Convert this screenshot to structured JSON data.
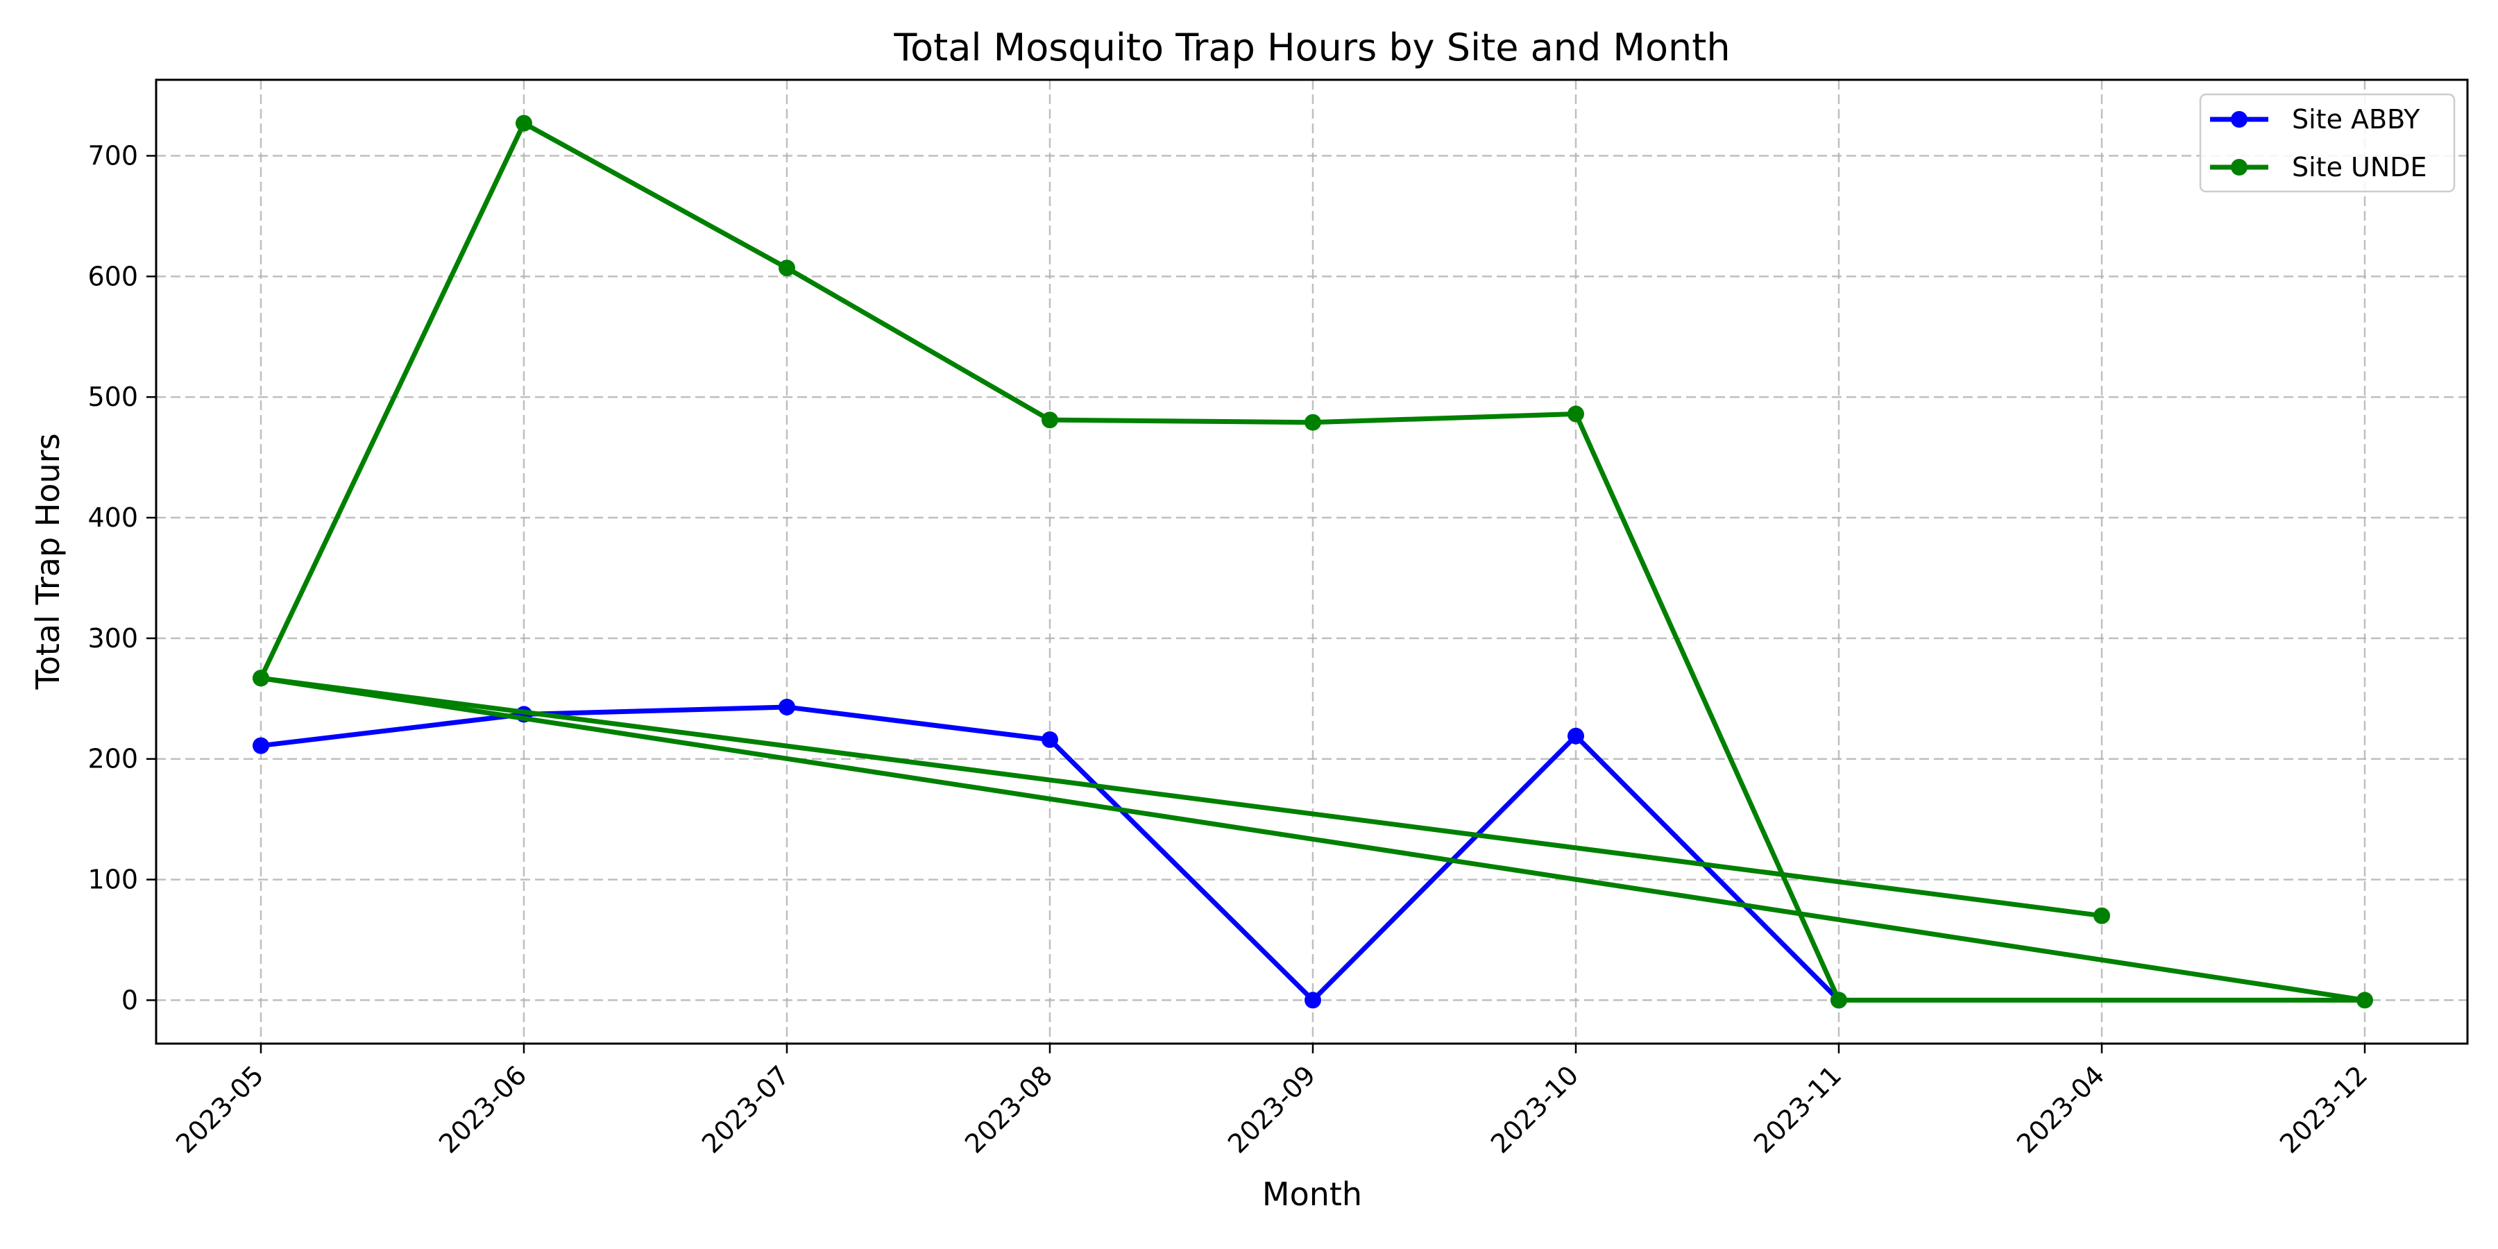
{
  "chart_data": {
    "type": "line",
    "title": "Total Mosquito Trap Hours by Site and Month",
    "xlabel": "Month",
    "ylabel": "Total Trap Hours",
    "categories": [
      "2023-05",
      "2023-06",
      "2023-07",
      "2023-08",
      "2023-09",
      "2023-10",
      "2023-11",
      "2023-04",
      "2023-12"
    ],
    "ylim": [
      -36,
      763
    ],
    "yticks": [
      0,
      100,
      200,
      300,
      400,
      500,
      600,
      700
    ],
    "grid": true,
    "legend_position": "top-right",
    "series": [
      {
        "name": "Site ABBY",
        "color": "#0000ff",
        "points": [
          {
            "x": "2023-05",
            "y": 211
          },
          {
            "x": "2023-06",
            "y": 237
          },
          {
            "x": "2023-07",
            "y": 243
          },
          {
            "x": "2023-08",
            "y": 216
          },
          {
            "x": "2023-09",
            "y": 0
          },
          {
            "x": "2023-10",
            "y": 219
          },
          {
            "x": "2023-11",
            "y": 0
          }
        ]
      },
      {
        "name": "Site UNDE",
        "color": "#008000",
        "points": [
          {
            "x": "2023-05",
            "y": 267
          },
          {
            "x": "2023-06",
            "y": 727
          },
          {
            "x": "2023-07",
            "y": 607
          },
          {
            "x": "2023-08",
            "y": 481
          },
          {
            "x": "2023-09",
            "y": 479
          },
          {
            "x": "2023-10",
            "y": 486
          },
          {
            "x": "2023-11",
            "y": 0
          },
          {
            "x": "2023-12",
            "y": 0
          },
          {
            "x": "2023-05",
            "y": 267
          },
          {
            "x": "2023-04",
            "y": 70
          }
        ]
      }
    ]
  }
}
